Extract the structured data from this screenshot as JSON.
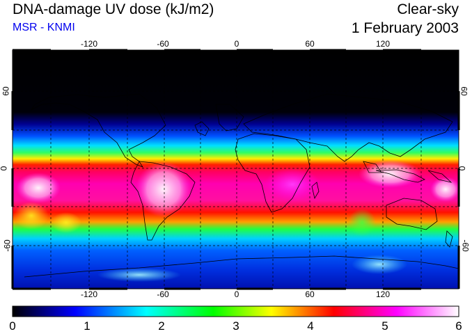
{
  "header": {
    "title": "DNA-damage UV dose (kJ/m2)",
    "subtitle": "MSR - KNMI",
    "sky_condition": "Clear-sky",
    "date": "1 February 2003"
  },
  "map": {
    "lon_ticks": [
      "-120",
      "-60",
      "0",
      "60",
      "120"
    ],
    "lat_ticks": [
      "60",
      "0",
      "-60"
    ],
    "lon_range": [
      -180,
      180
    ],
    "lat_range": [
      -90,
      90
    ],
    "grid": "dashed lines every 30 degrees"
  },
  "colorbar": {
    "ticks": [
      "0",
      "1",
      "2",
      "3",
      "4",
      "5",
      "6"
    ],
    "range": [
      0,
      6
    ],
    "colors": [
      "#000000",
      "#0000ff",
      "#00ffff",
      "#00ff00",
      "#ffff00",
      "#ff0000",
      "#ff00ff",
      "#ffffff"
    ]
  }
}
